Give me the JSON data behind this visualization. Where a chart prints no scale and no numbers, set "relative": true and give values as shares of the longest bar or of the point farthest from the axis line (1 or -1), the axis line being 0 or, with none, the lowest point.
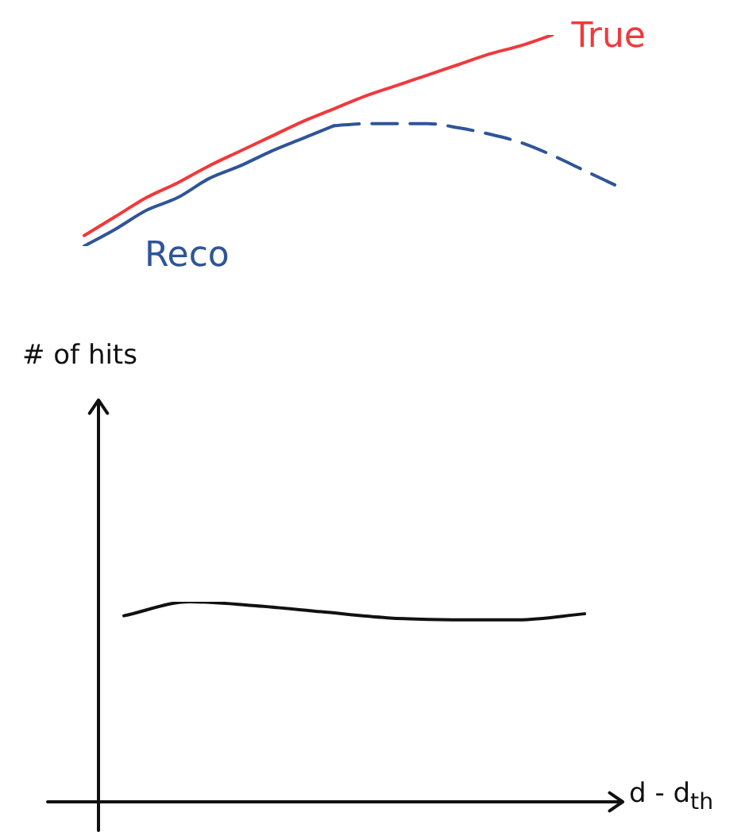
{
  "chart_data": [
    {
      "type": "line",
      "relative": true,
      "legend": false,
      "marker": "none",
      "line_style": "solid",
      "categories": [
        null,
        null,
        null,
        null,
        null,
        null,
        null,
        null,
        null,
        null,
        null,
        null,
        null,
        null,
        null,
        null,
        null,
        null
      ],
      "series": [
        {
          "name": "True",
          "color": "#f0393c",
          "values": [
            0.05,
            0.14,
            0.23,
            0.3,
            0.38,
            0.45,
            0.52,
            0.59,
            0.65,
            0.71,
            0.76,
            0.81,
            0.86,
            0.91,
            0.95,
            1,
            null,
            null
          ]
        },
        {
          "name": "Reco",
          "color": "#2f5597",
          "values": [
            0,
            0.08,
            0.17,
            0.23,
            0.32,
            0.38,
            0.45,
            0.51,
            0.57,
            null,
            null,
            null,
            null,
            null,
            null,
            null,
            null,
            null
          ]
        },
        {
          "color": "#2f5597",
          "line_style": "dashed",
          "values": [
            null,
            null,
            null,
            null,
            null,
            null,
            null,
            null,
            0.57,
            0.58,
            0.58,
            0.58,
            0.56,
            0.53,
            0.49,
            0.43,
            0.36,
            0.29
          ]
        }
      ]
    },
    {
      "type": "line",
      "relative": true,
      "legend": false,
      "marker": "none",
      "line_style": "solid",
      "xlabel": "d - d$_{th}$",
      "ylabel": "# of hits",
      "categories": [
        null,
        null,
        null,
        null,
        null,
        null,
        null,
        null
      ],
      "series": [
        {
          "color": "#111111",
          "values": [
            0.93,
            1,
            0.98,
            0.95,
            0.92,
            0.91,
            0.91,
            0.94
          ]
        }
      ]
    }
  ]
}
